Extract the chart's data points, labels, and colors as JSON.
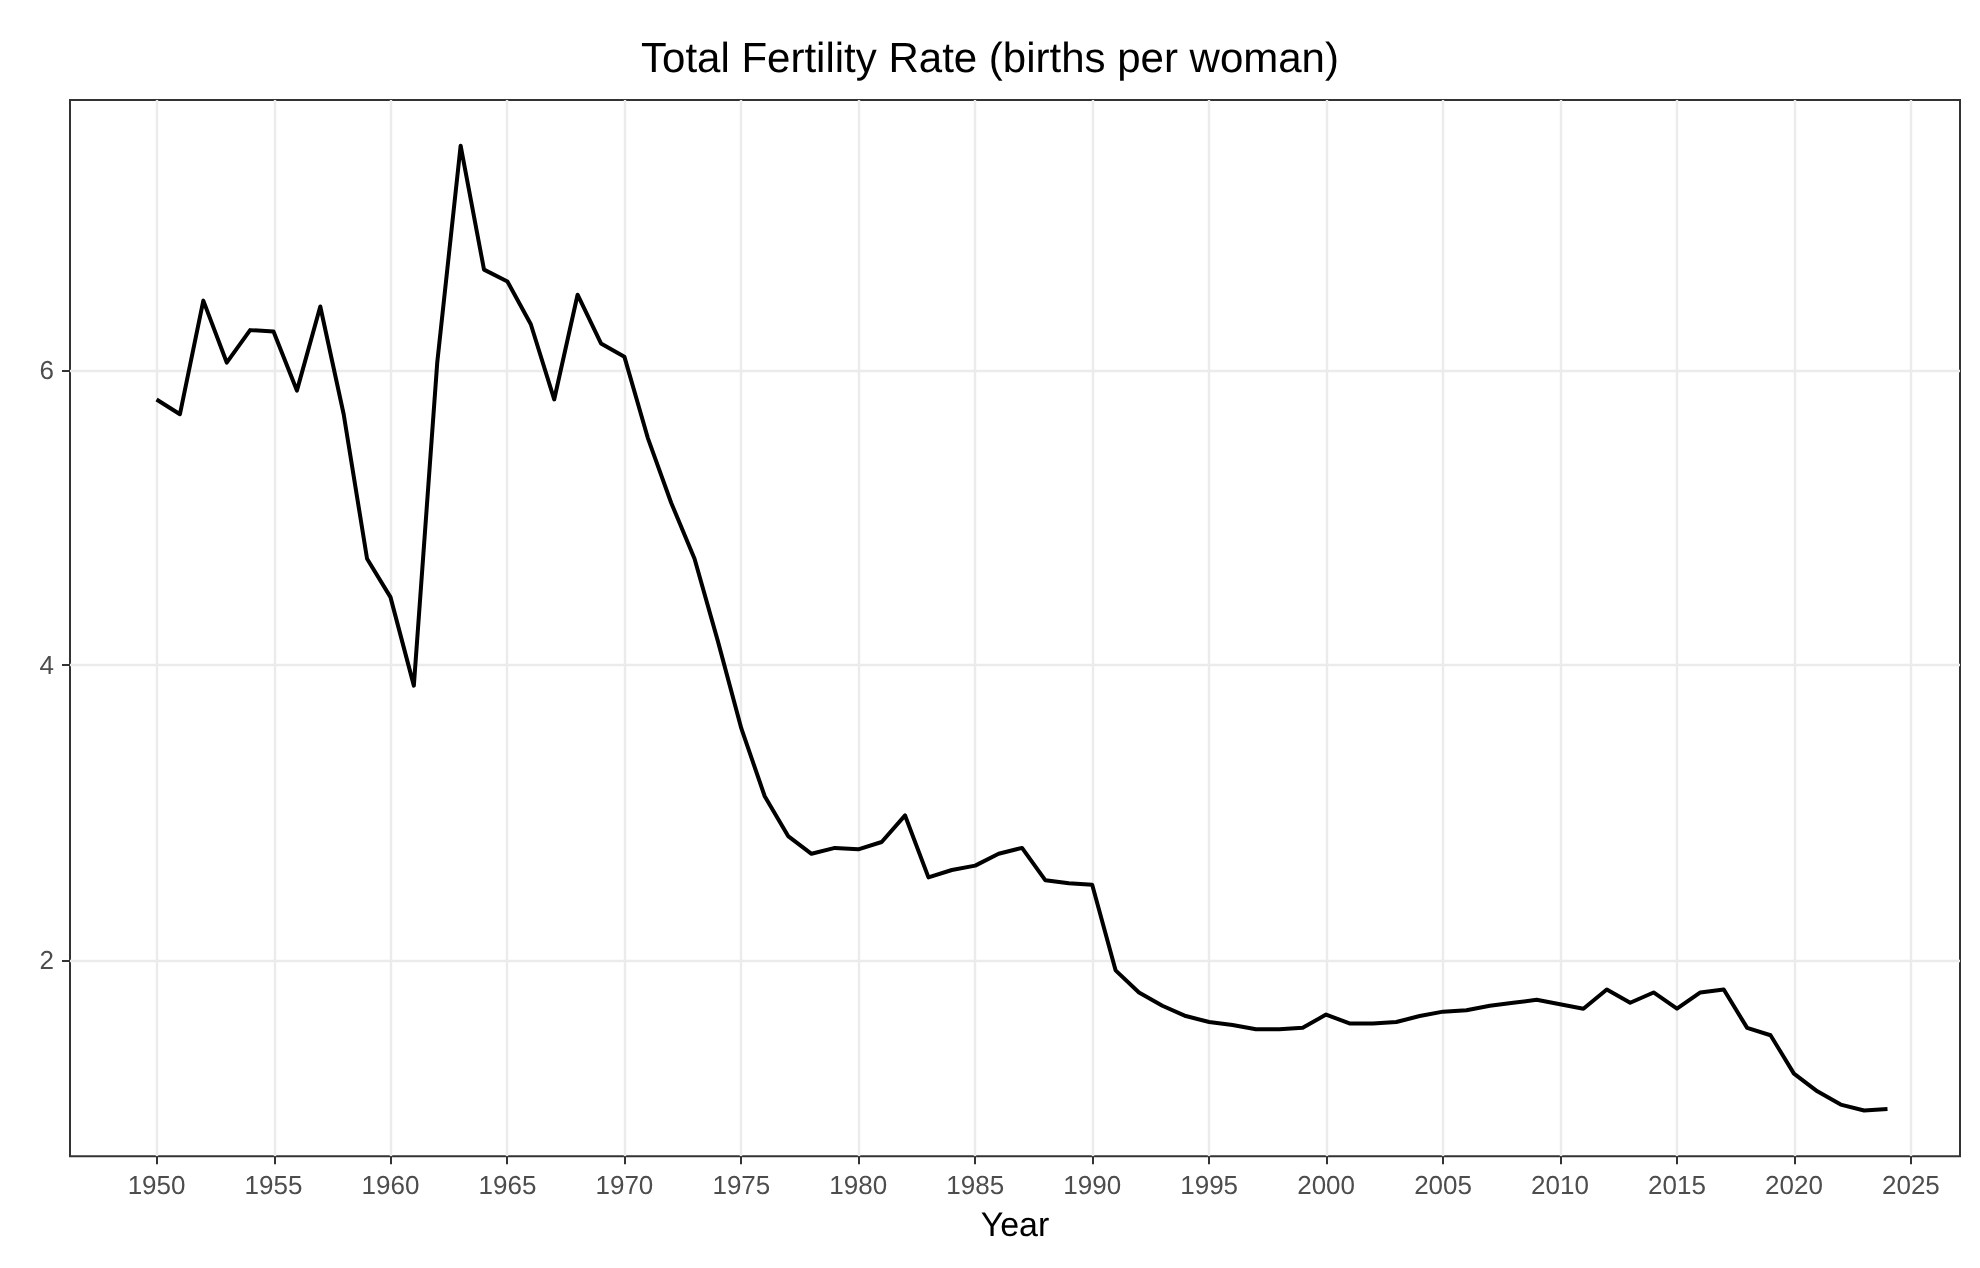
{
  "chart_data": {
    "type": "line",
    "title": "Total Fertility Rate (births per woman)",
    "xlabel": "Year",
    "x": [
      1950,
      1951,
      1952,
      1953,
      1954,
      1955,
      1956,
      1957,
      1958,
      1959,
      1960,
      1961,
      1962,
      1963,
      1964,
      1965,
      1966,
      1967,
      1968,
      1969,
      1970,
      1971,
      1972,
      1973,
      1974,
      1975,
      1976,
      1977,
      1978,
      1979,
      1980,
      1981,
      1982,
      1983,
      1984,
      1985,
      1986,
      1987,
      1988,
      1989,
      1990,
      1991,
      1992,
      1993,
      1994,
      1995,
      1996,
      1997,
      1998,
      1999,
      2000,
      2001,
      2002,
      2003,
      2004,
      2005,
      2006,
      2007,
      2008,
      2009,
      2010,
      2011,
      2012,
      2013,
      2014,
      2015,
      2016,
      2017,
      2018,
      2019,
      2020,
      2021,
      2022,
      2023,
      2024
    ],
    "series": [
      {
        "color": "#000000",
        "values": [
          5.8,
          5.7,
          6.47,
          6.05,
          6.27,
          6.26,
          5.86,
          6.43,
          5.7,
          4.72,
          4.46,
          3.86,
          6.05,
          7.52,
          6.68,
          6.6,
          6.31,
          5.8,
          6.51,
          6.18,
          6.09,
          5.54,
          5.1,
          4.72,
          4.16,
          3.57,
          3.11,
          2.84,
          2.72,
          2.76,
          2.75,
          2.8,
          2.98,
          2.56,
          2.61,
          2.64,
          2.72,
          2.76,
          2.54,
          2.52,
          2.51,
          1.93,
          1.78,
          1.69,
          1.62,
          1.58,
          1.56,
          1.53,
          1.53,
          1.54,
          1.63,
          1.57,
          1.57,
          1.58,
          1.62,
          1.65,
          1.66,
          1.69,
          1.71,
          1.73,
          1.7,
          1.67,
          1.8,
          1.71,
          1.78,
          1.67,
          1.78,
          1.8,
          1.54,
          1.49,
          1.23,
          1.11,
          1.02,
          0.98,
          0.99
        ]
      }
    ],
    "xlim": [
      1946.3,
      2027.1
    ],
    "xticks": [
      1950,
      1955,
      1960,
      1965,
      1970,
      1975,
      1980,
      1985,
      1990,
      1995,
      2000,
      2005,
      2010,
      2015,
      2020,
      2025
    ],
    "ylim": [
      0.67,
      7.83
    ],
    "yticks": [
      2,
      4,
      6
    ],
    "grid": true,
    "marker": "none",
    "line_style": "solid"
  }
}
